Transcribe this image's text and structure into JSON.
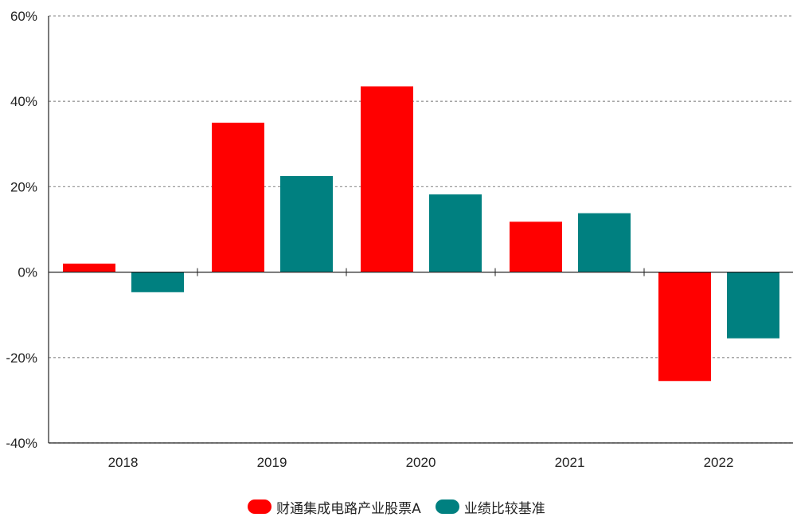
{
  "chart_data": {
    "type": "bar",
    "categories": [
      "2018",
      "2019",
      "2020",
      "2021",
      "2022"
    ],
    "series": [
      {
        "name": "财通集成电路产业股票A",
        "color": "#ff0000",
        "values": [
          2.0,
          35.0,
          43.5,
          11.8,
          -25.5
        ]
      },
      {
        "name": "业绩比较基准",
        "color": "#008080",
        "values": [
          -4.7,
          22.5,
          18.2,
          13.8,
          -15.5
        ]
      }
    ],
    "ylim": [
      -40,
      60
    ],
    "yticks": [
      -40,
      -20,
      0,
      20,
      40,
      60
    ],
    "ytick_labels": [
      "-40%",
      "-20%",
      "0%",
      "20%",
      "40%",
      "60%"
    ],
    "grid": true,
    "legend_position": "bottom-center"
  }
}
